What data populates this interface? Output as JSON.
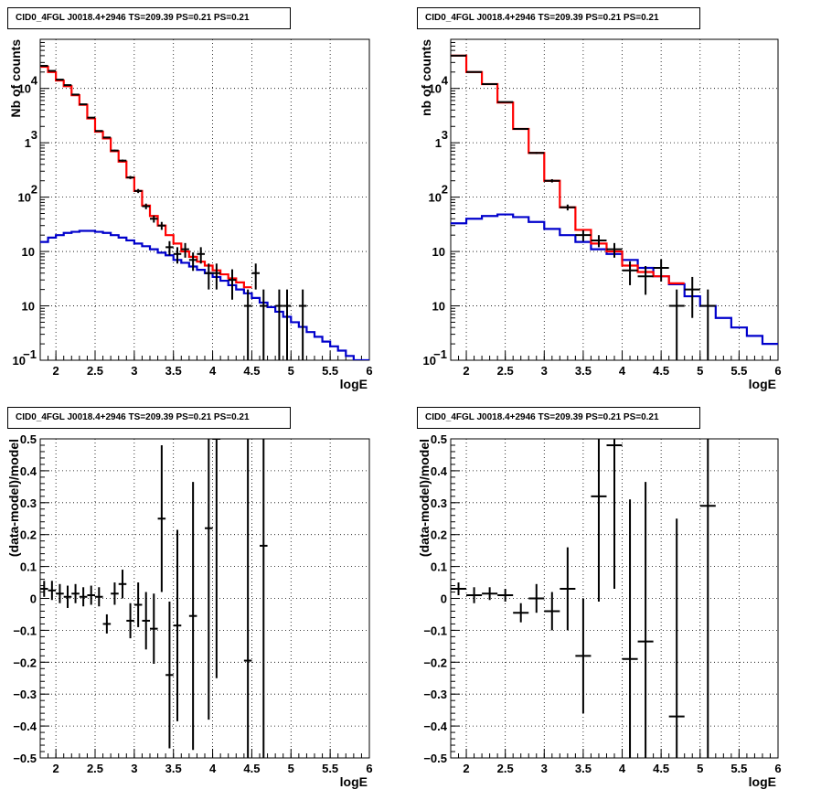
{
  "chart_data": [
    {
      "type": "step",
      "title": "CID0_4FGL J0018.4+2946 TS=209.39 PS=0.21 PS=0.21",
      "xlabel": "logE",
      "ylabel": "Nb of counts",
      "xlim": [
        1.8,
        6.0
      ],
      "ylim": [
        0.1,
        80000
      ],
      "yscale": "log",
      "grid": true,
      "bin_edges": [
        1.8,
        1.9,
        2.0,
        2.1,
        2.2,
        2.3,
        2.4,
        2.5,
        2.6,
        2.7,
        2.8,
        2.9,
        3.0,
        3.1,
        3.2,
        3.3,
        3.4,
        3.5,
        3.6,
        3.7,
        3.8,
        3.9,
        4.0,
        4.1,
        4.2,
        4.3,
        4.4,
        4.5,
        4.6,
        4.7,
        4.8,
        4.9,
        5.0,
        5.1,
        5.2,
        5.3,
        5.4,
        5.5,
        5.6,
        5.7,
        5.8,
        5.9,
        6.0
      ],
      "series": [
        {
          "color": "#0000cc",
          "values": [
            15,
            18,
            20,
            22,
            23,
            24,
            24,
            23,
            22,
            20,
            18,
            16,
            14,
            12.5,
            11,
            9.5,
            8.5,
            7,
            6.2,
            5.3,
            4.6,
            4.0,
            3.4,
            2.9,
            2.4,
            2.0,
            1.7,
            1.4,
            1.15,
            0.95,
            0.78,
            0.63,
            0.5,
            0.41,
            0.33,
            0.27,
            0.22,
            0.18,
            0.15,
            0.12,
            0.1,
            0.09
          ]
        },
        {
          "color": "#ff0000",
          "values": [
            25000,
            20000,
            14000,
            11000,
            7500,
            5000,
            2800,
            1600,
            1200,
            700,
            450,
            230,
            130,
            70,
            45,
            30,
            20,
            14,
            10,
            8,
            6.5,
            5.5,
            4.5,
            3.8,
            3.2,
            2.7,
            2.2
          ]
        }
      ],
      "points": {
        "color": "#000000",
        "x": [
          1.85,
          1.95,
          2.05,
          2.15,
          2.25,
          2.35,
          2.45,
          2.55,
          2.65,
          2.75,
          2.85,
          2.95,
          3.05,
          3.15,
          3.25,
          3.35,
          3.45,
          3.55,
          3.65,
          3.75,
          3.85,
          3.95,
          4.05,
          4.25,
          4.45,
          4.55,
          4.65,
          4.85,
          4.95,
          5.15
        ],
        "y": [
          26000,
          21000,
          14500,
          11500,
          7700,
          5100,
          2900,
          1650,
          1250,
          720,
          470,
          230,
          130,
          68,
          40,
          30,
          12,
          9,
          11,
          7,
          9,
          4,
          4,
          3,
          1,
          4,
          1,
          1,
          1,
          1
        ],
        "yerr_lo": [
          160,
          140,
          120,
          100,
          85,
          70,
          50,
          40,
          35,
          27,
          21,
          15,
          11,
          8,
          6,
          5,
          3.5,
          3,
          3.3,
          2.6,
          3,
          2,
          2,
          1.7,
          0.92,
          2,
          0.92,
          0.92,
          0.92,
          0.92
        ],
        "yerr_hi": [
          160,
          140,
          120,
          100,
          85,
          70,
          50,
          40,
          35,
          27,
          21,
          15,
          11,
          8,
          6,
          5,
          3.5,
          3,
          3.3,
          2.6,
          3,
          2,
          2,
          1.7,
          1,
          2,
          1,
          1,
          1,
          1
        ]
      },
      "ticks": {
        "x": [
          "2",
          "2.5",
          "3",
          "3.5",
          "4",
          "4.5",
          "5",
          "5.5",
          "6"
        ],
        "y_main": [
          "10",
          "10",
          "10",
          "10",
          "1",
          "10"
        ],
        "y_sup": [
          "−1",
          "",
          "",
          "",
          "",
          ""
        ]
      }
    },
    {
      "type": "step",
      "title": "CID0_4FGL J0018.4+2946 TS=209.39 PS=0.21 PS=0.21",
      "xlabel": "logE",
      "ylabel": "nb of counts",
      "xlim": [
        1.8,
        6.0
      ],
      "ylim": [
        0.1,
        80000
      ],
      "yscale": "log",
      "grid": true,
      "bin_edges": [
        1.8,
        2.0,
        2.2,
        2.4,
        2.6,
        2.8,
        3.0,
        3.2,
        3.4,
        3.6,
        3.8,
        4.0,
        4.2,
        4.4,
        4.6,
        4.8,
        5.0,
        5.2,
        5.4,
        5.6,
        5.8,
        6.0
      ],
      "series": [
        {
          "color": "#0000cc",
          "values": [
            33,
            40,
            45,
            48,
            43,
            35,
            26,
            20,
            15,
            11,
            9,
            7,
            5,
            3.5,
            2.5,
            1.5,
            1.0,
            0.6,
            0.4,
            0.28,
            0.2
          ]
        },
        {
          "color": "#ff0000",
          "values": [
            40000,
            20000,
            12000,
            5500,
            1800,
            650,
            200,
            65,
            25,
            14,
            10,
            5.5,
            4.2,
            3.5,
            2.6
          ]
        }
      ],
      "points": {
        "color": "#000000",
        "x": [
          1.9,
          2.1,
          2.3,
          2.5,
          2.7,
          2.9,
          3.1,
          3.3,
          3.5,
          3.7,
          3.9,
          4.1,
          4.3,
          4.5,
          4.7,
          4.9,
          5.1
        ],
        "y": [
          40000,
          20000,
          12000,
          5600,
          1800,
          650,
          200,
          65,
          20,
          16,
          11,
          4.5,
          3.5,
          5,
          1,
          2,
          1
        ],
        "yerr_lo": [
          200,
          140,
          110,
          75,
          42,
          25,
          14,
          8,
          4.5,
          4,
          3.3,
          2.1,
          1.9,
          2.2,
          0.92,
          1.4,
          0.92
        ],
        "yerr_hi": [
          200,
          140,
          110,
          75,
          42,
          25,
          14,
          8,
          4.5,
          4,
          3.3,
          2.1,
          1.9,
          2.2,
          1,
          1.4,
          1
        ]
      },
      "ticks": {
        "x": [
          "2",
          "2.5",
          "3",
          "3.5",
          "4",
          "4.5",
          "5",
          "5.5",
          "6"
        ],
        "y_main": [
          "10",
          "10",
          "10",
          "10",
          "1",
          "10"
        ],
        "y_sup": [
          "−1",
          "",
          "",
          "",
          "",
          ""
        ]
      }
    },
    {
      "type": "scatter",
      "title": "CID0_4FGL J0018.4+2946 TS=209.39 PS=0.21 PS=0.21",
      "xlabel": "logE",
      "ylabel": "(data-model)/model",
      "xlim": [
        1.8,
        6.0
      ],
      "ylim": [
        -0.5,
        0.5
      ],
      "grid": true,
      "points": {
        "color": "#000000",
        "x": [
          1.85,
          1.95,
          2.05,
          2.15,
          2.25,
          2.35,
          2.45,
          2.55,
          2.65,
          2.75,
          2.85,
          2.95,
          3.05,
          3.15,
          3.25,
          3.35,
          3.45,
          3.55,
          3.75,
          3.95,
          4.05,
          4.45,
          4.65
        ],
        "y": [
          0.03,
          0.025,
          0.015,
          0.005,
          0.015,
          0.005,
          0.01,
          0.005,
          -0.08,
          0.015,
          0.045,
          -0.07,
          -0.02,
          -0.07,
          -0.095,
          0.25,
          -0.24,
          -0.085,
          -0.055,
          0.22,
          0.5,
          -0.195,
          0.165
        ],
        "yerr": [
          0.025,
          0.03,
          0.03,
          0.035,
          0.03,
          0.03,
          0.03,
          0.03,
          0.03,
          0.035,
          0.045,
          0.055,
          0.07,
          0.09,
          0.11,
          0.23,
          0.23,
          0.3,
          0.42,
          0.6,
          0.75,
          1.2,
          1.4
        ]
      },
      "ticks": {
        "x": [
          "2",
          "2.5",
          "3",
          "3.5",
          "4",
          "4.5",
          "5",
          "5.5",
          "6"
        ],
        "y": [
          "0.5",
          "0.4",
          "0.3",
          "0.2",
          "0.1",
          "0",
          "−0.1",
          "−0.2",
          "−0.3",
          "−0.4",
          "−0.5"
        ]
      }
    },
    {
      "type": "scatter",
      "title": "CID0_4FGL J0018.4+2946 TS=209.39 PS=0.21 PS=0.21",
      "xlabel": "logE",
      "ylabel": "(data-model)/model",
      "xlim": [
        1.8,
        6.0
      ],
      "ylim": [
        -0.5,
        0.5
      ],
      "grid": true,
      "points": {
        "color": "#000000",
        "x": [
          1.9,
          2.1,
          2.3,
          2.5,
          2.7,
          2.9,
          3.1,
          3.3,
          3.5,
          3.7,
          3.9,
          4.1,
          4.3,
          4.7,
          5.1
        ],
        "y": [
          0.03,
          0.01,
          0.015,
          0.01,
          -0.045,
          0.0,
          -0.04,
          0.03,
          -0.18,
          0.32,
          0.48,
          -0.19,
          -0.135,
          -0.37,
          0.29
        ],
        "yerr": [
          0.02,
          0.025,
          0.02,
          0.02,
          0.03,
          0.045,
          0.06,
          0.13,
          0.18,
          0.33,
          0.45,
          0.5,
          0.5,
          0.62,
          1.0
        ]
      },
      "ticks": {
        "x": [
          "2",
          "2.5",
          "3",
          "3.5",
          "4",
          "4.5",
          "5",
          "5.5",
          "6"
        ],
        "y": [
          "0.5",
          "0.4",
          "0.3",
          "0.2",
          "0.1",
          "0",
          "−0.1",
          "−0.2",
          "−0.3",
          "−0.4",
          "−0.5"
        ]
      }
    }
  ]
}
